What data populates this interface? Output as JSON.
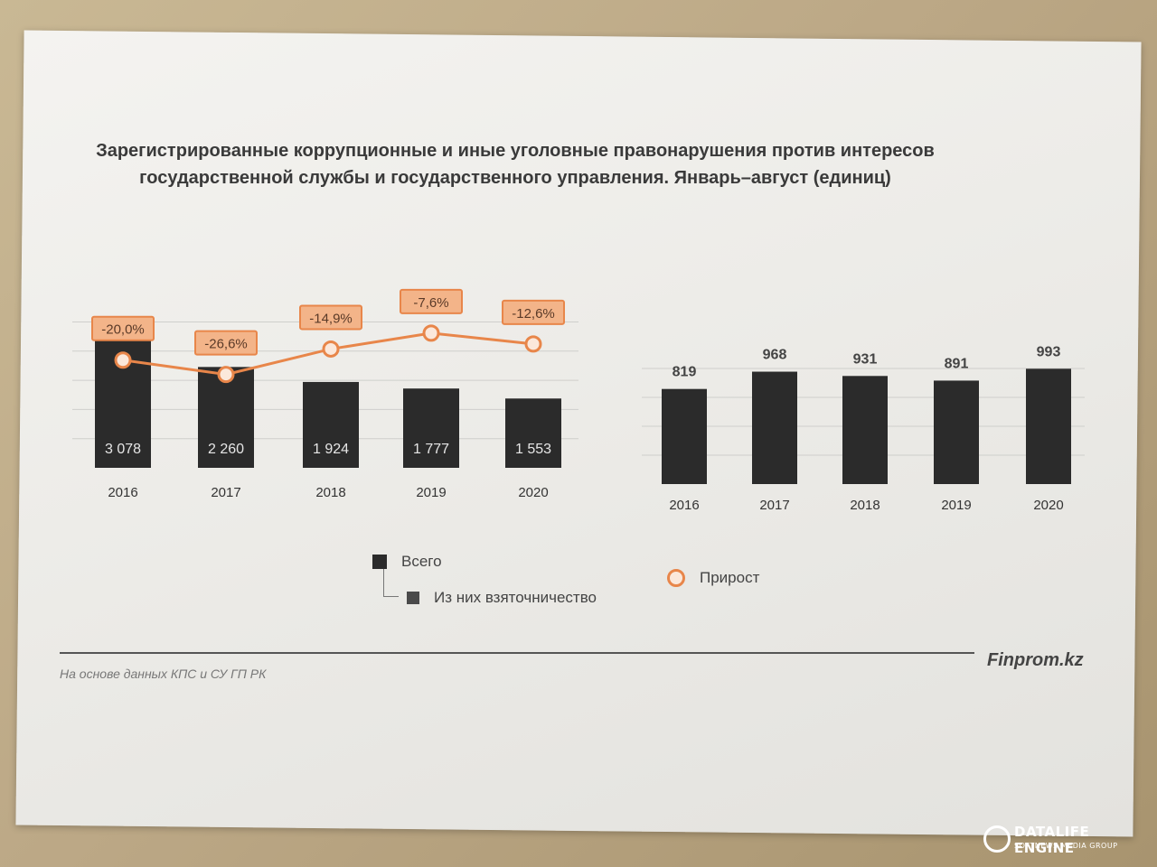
{
  "title": {
    "line1": "Зарегистрированные коррупционные и иные уголовные правонарушения против интересов",
    "line2": "государственной службы и государственного управления. Январь–август (единиц)"
  },
  "chart_data": [
    {
      "type": "bar",
      "categories": [
        "2016",
        "2017",
        "2018",
        "2019",
        "2020"
      ],
      "series": [
        {
          "name": "Всего",
          "values": [
            3078,
            2260,
            1924,
            1777,
            1553
          ],
          "labels": [
            "3 078",
            "2 260",
            "1 924",
            "1 777",
            "1 553"
          ]
        }
      ],
      "overlay": {
        "type": "line",
        "name": "Прирост",
        "values": [
          -20.0,
          -26.6,
          -14.9,
          -7.6,
          -12.6
        ],
        "labels": [
          "-20,0%",
          "-26,6%",
          "-14,9%",
          "-7,6%",
          "-12,6%"
        ]
      },
      "ylim": [
        0,
        3400
      ],
      "grid": true
    },
    {
      "type": "bar",
      "categories": [
        "2016",
        "2017",
        "2018",
        "2019",
        "2020"
      ],
      "series": [
        {
          "name": "Из них взяточничество",
          "values": [
            819,
            968,
            931,
            891,
            993
          ],
          "labels": [
            "819",
            "968",
            "931",
            "891",
            "993"
          ]
        }
      ],
      "ylim": [
        0,
        1100
      ],
      "grid": true
    }
  ],
  "legend": {
    "total": "Всего",
    "bribery": "Из них  взяточничество",
    "growth": "Прирост"
  },
  "colors": {
    "bar": "#2b2b2b",
    "accent": "#e8864a",
    "label_fill": "#f3b489"
  },
  "footer": {
    "source": "На основе данных  КПС и СУ ГП РК",
    "brand": "Finprom.kz"
  },
  "watermark": {
    "main": "DATALIFE ENGINE",
    "sub": "SOFTNEWS MEDIA GROUP"
  }
}
